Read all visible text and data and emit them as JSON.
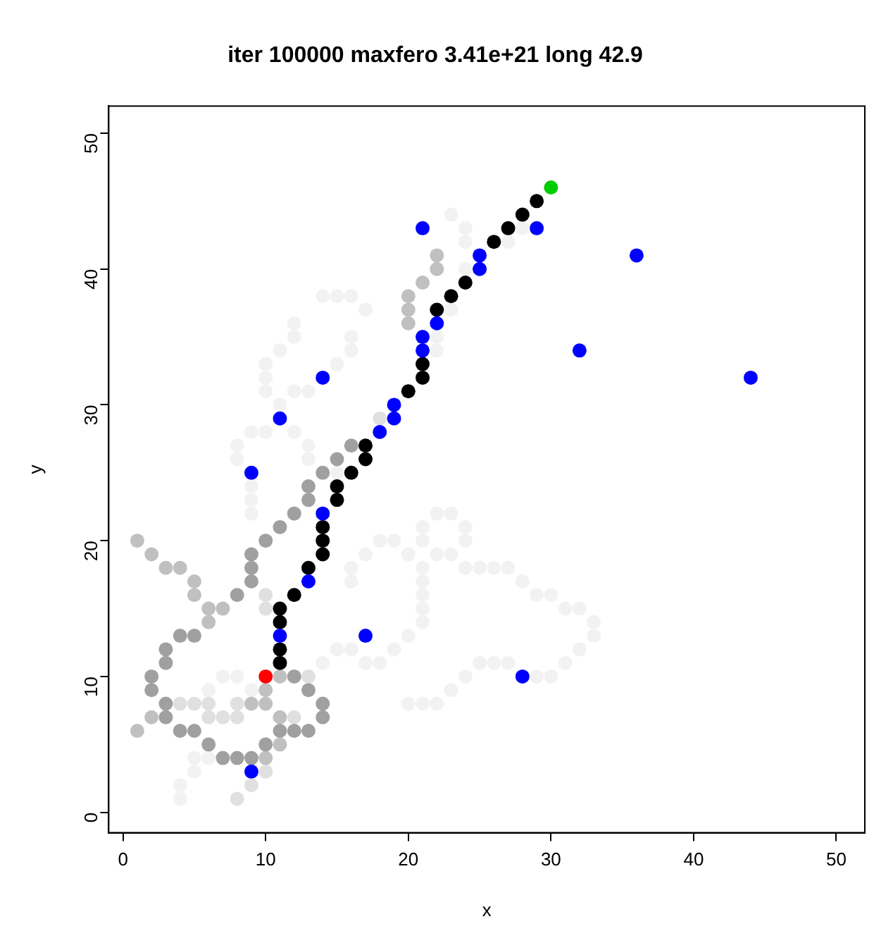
{
  "chart_data": {
    "type": "scatter",
    "title": "iter 100000 maxfero 3.41e+21 long 42.9",
    "xlabel": "x",
    "ylabel": "y",
    "xlim": [
      -1,
      52
    ],
    "ylim": [
      -1.5,
      52
    ],
    "xticks": [
      0,
      10,
      20,
      30,
      40,
      50
    ],
    "yticks": [
      0,
      10,
      20,
      30,
      40,
      50
    ],
    "marker": "circle",
    "grid": false,
    "series": [
      {
        "color": "#f2f2f2",
        "x": [
          4,
          4,
          5,
          5,
          6,
          7,
          8,
          9,
          6,
          9,
          9,
          9,
          14,
          15,
          16,
          17,
          12,
          12,
          16,
          16,
          11,
          15,
          10,
          10,
          10,
          12,
          13,
          11,
          9,
          10,
          12,
          8,
          8,
          13,
          13,
          15,
          22,
          22,
          23,
          23,
          24,
          24,
          28,
          27,
          24,
          17,
          18,
          19,
          20,
          21,
          21,
          21,
          21,
          21,
          20,
          19,
          18,
          17,
          16,
          16,
          15,
          16,
          14,
          22,
          23,
          21,
          24,
          21,
          24,
          22,
          23,
          24,
          25,
          26,
          27,
          28,
          29,
          30,
          31,
          32,
          33,
          33,
          32,
          31,
          25,
          26,
          27,
          24,
          29,
          30,
          23,
          20,
          21,
          22
        ],
        "values": [
          1,
          2,
          3,
          4,
          4,
          10,
          10,
          9,
          9,
          22,
          23,
          24,
          38,
          38,
          38,
          37,
          36,
          35,
          35,
          34,
          34,
          33,
          33,
          32,
          31,
          31,
          31,
          30,
          28,
          28,
          28,
          27,
          26,
          27,
          26,
          25,
          35,
          34,
          37,
          44,
          43,
          42,
          43,
          42,
          40,
          19,
          20,
          20,
          19,
          18,
          17,
          16,
          15,
          14,
          13,
          12,
          11,
          11,
          18,
          17,
          12,
          12,
          11,
          22,
          22,
          21,
          21,
          20,
          20,
          19,
          19,
          18,
          18,
          18,
          18,
          17,
          16,
          16,
          15,
          15,
          14,
          13,
          12,
          11,
          11,
          11,
          11,
          10,
          10,
          10,
          9,
          8,
          8,
          8
        ]
      },
      {
        "color": "#e0e0e0",
        "x": [
          4,
          5,
          6,
          10,
          10,
          18,
          13,
          6,
          7,
          8,
          12,
          8,
          10,
          9,
          8
        ],
        "values": [
          8,
          8,
          8,
          16,
          15,
          29,
          10,
          7,
          7,
          7,
          7,
          8,
          3,
          2,
          1
        ]
      },
      {
        "color": "#c0c0c0",
        "x": [
          1,
          2,
          3,
          4,
          5,
          5,
          6,
          7,
          6,
          2,
          1,
          10,
          11,
          11,
          10,
          9,
          10,
          11,
          22,
          22,
          21,
          20,
          20,
          20
        ],
        "values": [
          20,
          19,
          18,
          18,
          17,
          16,
          15,
          15,
          14,
          7,
          6,
          4,
          5,
          7,
          8,
          8,
          9,
          10,
          41,
          40,
          39,
          38,
          37,
          36
        ]
      },
      {
        "color": "#a0a0a0",
        "x": [
          3,
          3,
          4,
          5,
          6,
          7,
          8,
          9,
          10,
          11,
          12,
          13,
          14,
          14,
          13,
          12,
          4,
          5,
          3,
          3,
          2,
          2,
          8,
          9,
          9,
          9,
          10,
          11,
          12,
          13,
          13,
          14,
          15,
          16
        ],
        "values": [
          8,
          7,
          6,
          6,
          5,
          4,
          4,
          4,
          5,
          6,
          6,
          6,
          7,
          8,
          9,
          10,
          13,
          13,
          12,
          11,
          10,
          9,
          16,
          17,
          18,
          19,
          20,
          21,
          22,
          23,
          24,
          25,
          26,
          27
        ]
      },
      {
        "color": "#000000",
        "x": [
          11,
          11,
          11,
          11,
          12,
          13,
          14,
          14,
          14,
          15,
          15,
          16,
          17,
          17,
          20,
          21,
          21,
          22,
          23,
          24,
          26,
          27,
          28,
          29
        ],
        "values": [
          11,
          12,
          14,
          15,
          16,
          18,
          19,
          20,
          21,
          23,
          24,
          25,
          26,
          27,
          31,
          32,
          33,
          37,
          38,
          39,
          42,
          43,
          44,
          45
        ]
      },
      {
        "color": "#0000ff",
        "x": [
          11,
          13,
          14,
          18,
          19,
          19,
          21,
          21,
          22,
          25,
          25,
          29,
          21,
          9,
          11,
          14,
          17,
          9,
          28,
          32,
          36,
          44
        ],
        "values": [
          13,
          17,
          22,
          28,
          29,
          30,
          34,
          35,
          36,
          40,
          41,
          43,
          43,
          25,
          29,
          32,
          13,
          3,
          10,
          34,
          41,
          32
        ]
      },
      {
        "color": "#ff0000",
        "x": [
          10
        ],
        "values": [
          10
        ]
      },
      {
        "color": "#00cd00",
        "x": [
          30
        ],
        "values": [
          46
        ]
      }
    ]
  }
}
